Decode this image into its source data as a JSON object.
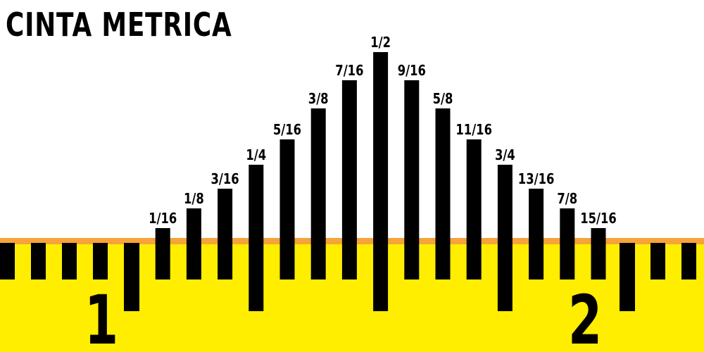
{
  "title": "CINTA METRICA",
  "colors": {
    "tape": "#ffee00",
    "edge": "#f6a43a",
    "ticks": "#000000",
    "background": "#ffffff"
  },
  "ruler": {
    "inch_labels": [
      "1",
      "2"
    ],
    "fraction_labels": [
      "1/16",
      "1/8",
      "3/16",
      "1/4",
      "5/16",
      "3/8",
      "7/16",
      "1/2",
      "9/16",
      "5/8",
      "11/16",
      "3/4",
      "13/16",
      "7/8",
      "15/16"
    ]
  }
}
